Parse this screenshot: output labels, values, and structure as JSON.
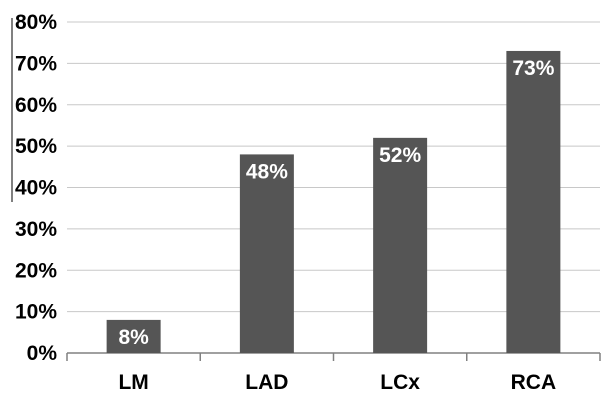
{
  "chart_data": {
    "type": "bar",
    "categories": [
      "LM",
      "LAD",
      "LCx",
      "RCA"
    ],
    "values": [
      8,
      48,
      52,
      73
    ],
    "data_labels": [
      "8%",
      "48%",
      "52%",
      "73%"
    ],
    "y_ticks": [
      "0%",
      "10%",
      "20%",
      "30%",
      "40%",
      "50%",
      "60%",
      "70%",
      "80%"
    ],
    "ylim": [
      0,
      80
    ],
    "title": "",
    "xlabel": "",
    "ylabel": "",
    "grid": true,
    "legend": "none",
    "colors": {
      "bar": "#555555",
      "grid": "#c8c8c8",
      "axis": "#808080"
    }
  }
}
